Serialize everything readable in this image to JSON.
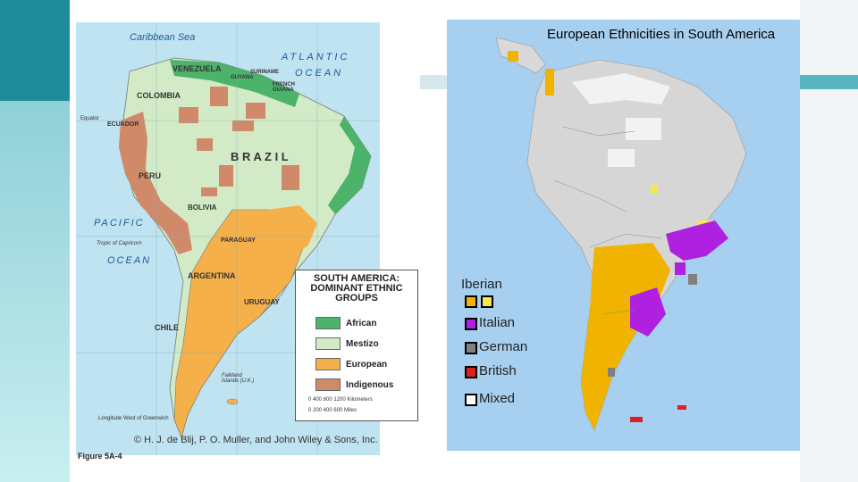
{
  "map1": {
    "labels": {
      "caribbean_sea": "Caribbean Sea",
      "atlantic": "ATLANTIC",
      "ocean_east": "OCEAN",
      "venezuela": "VENEZUELA",
      "guyana": "GUYANA",
      "suriname": "SURINAME",
      "french_guiana": "FRENCH GUIANA",
      "colombia": "COLOMBIA",
      "ecuador": "ECUADOR",
      "brazil": "B R A Z I L",
      "peru": "PERU",
      "bolivia": "BOLIVIA",
      "pacific": "PACIFIC",
      "ocean_west": "OCEAN",
      "tropic": "Tropic of Capricorn",
      "paraguay": "PARAGUAY",
      "argentina": "ARGENTINA",
      "uruguay": "URUGUAY",
      "chile": "CHILE",
      "falkland": "Falkland Islands (U.K.)",
      "longitude": "Longitude West of Greenwich",
      "equator": "Equator"
    },
    "legend": {
      "title": "SOUTH AMERICA: DOMINANT ETHNIC GROUPS",
      "items": [
        {
          "label": "African",
          "color": "#4cb36a"
        },
        {
          "label": "Mestizo",
          "color": "#d2ebc6"
        },
        {
          "label": "European",
          "color": "#f6b04a"
        },
        {
          "label": "Indigenous",
          "color": "#d08a6a"
        }
      ],
      "scale_km": "0   400   800  1200 Kilometers",
      "scale_mi": "0   200   400   600 Miles"
    },
    "copyright": "© H. J. de Blij, P. O. Muller, and John Wiley & Sons, Inc.",
    "figure": "Figure 5A-4"
  },
  "map2": {
    "title": "European Ethnicities in South America",
    "legend": [
      {
        "label": "Iberian",
        "colors": [
          "#f0b400",
          "#f7e84a"
        ]
      },
      {
        "label": "Italian",
        "colors": [
          "#b020e0"
        ]
      },
      {
        "label": "German",
        "colors": [
          "#808080"
        ]
      },
      {
        "label": "British",
        "colors": [
          "#e02020"
        ]
      },
      {
        "label": "Mixed",
        "colors": [
          "#ffffff"
        ]
      }
    ]
  }
}
